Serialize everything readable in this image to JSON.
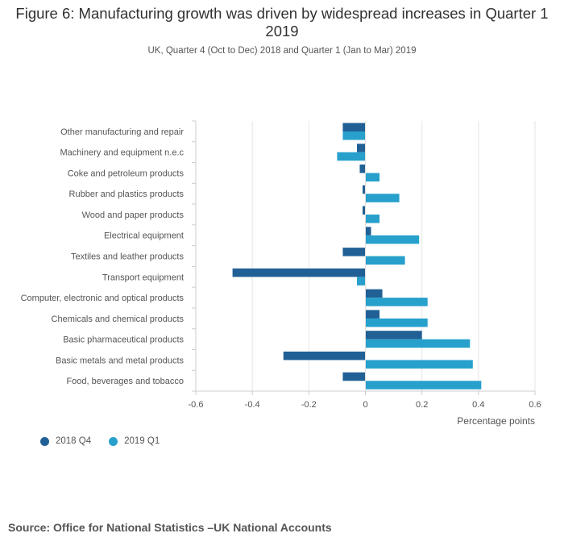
{
  "chart_data": {
    "type": "bar",
    "orientation": "horizontal",
    "title": "Figure 6: Manufacturing growth was driven by widespread increases in Quarter 1 2019",
    "subtitle": "UK, Quarter 4 (Oct to Dec) 2018 and Quarter 1 (Jan to Mar) 2019",
    "xlabel": "Percentage points",
    "ylabel": "",
    "xlim": [
      -0.6,
      0.6
    ],
    "xticks": [
      -0.6,
      -0.4,
      -0.2,
      0,
      0.2,
      0.4,
      0.6
    ],
    "xtick_labels": [
      "-0.6",
      "-0.4",
      "-0.2",
      "0",
      "0.2",
      "0.4",
      "0.6"
    ],
    "grid": true,
    "legend_position": "bottom-left",
    "categories": [
      "Other manufacturing and repair",
      "Machinery and equipment n.e.c",
      "Coke and petroleum products",
      "Rubber and plastics products",
      "Wood and paper products",
      "Electrical equipment",
      "Textiles and leather products",
      "Transport equipment",
      "Computer, electronic and optical products",
      "Chemicals and chemical products",
      "Basic pharmaceutical products",
      "Basic metals and metal products",
      "Food, beverages and tobacco"
    ],
    "series": [
      {
        "name": "2018 Q4",
        "color": "#206095",
        "values": [
          -0.08,
          -0.03,
          -0.02,
          -0.01,
          -0.01,
          0.02,
          -0.08,
          -0.47,
          0.06,
          0.05,
          0.2,
          -0.29,
          -0.08
        ]
      },
      {
        "name": "2019 Q1",
        "color": "#27a0cc",
        "values": [
          -0.08,
          -0.1,
          0.05,
          0.12,
          0.05,
          0.19,
          0.14,
          -0.03,
          0.22,
          0.22,
          0.37,
          0.38,
          0.41
        ]
      }
    ]
  },
  "source": "Source: Office for National Statistics –UK National Accounts"
}
